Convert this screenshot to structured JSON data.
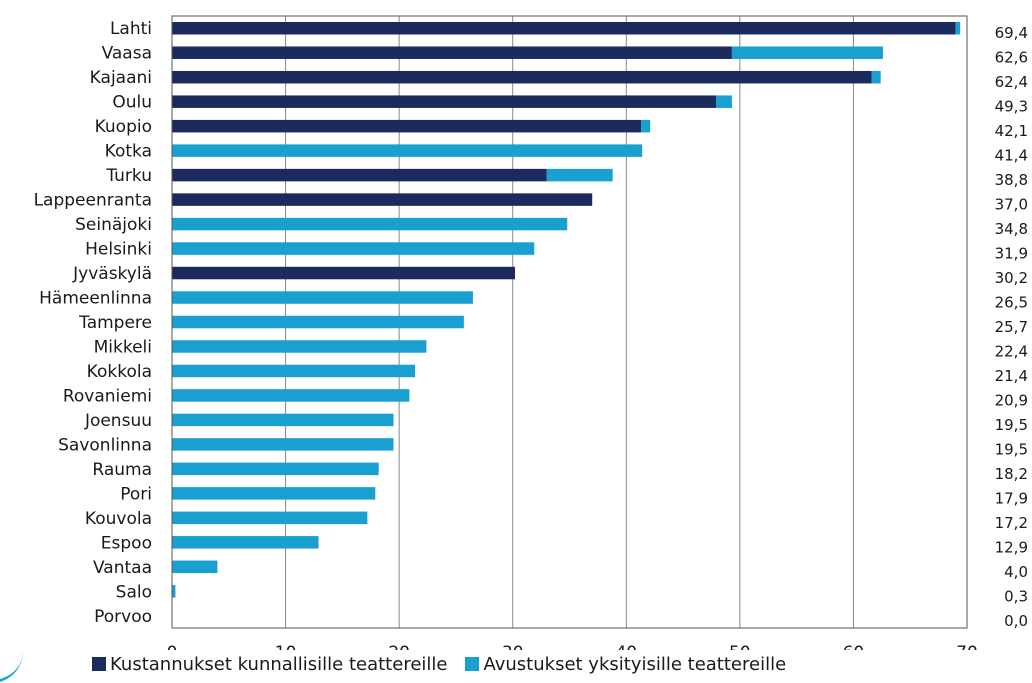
{
  "chart_data": {
    "type": "bar",
    "orientation": "horizontal",
    "stacked": true,
    "categories": [
      "Lahti",
      "Vaasa",
      "Kajaani",
      "Oulu",
      "Kuopio",
      "Kotka",
      "Turku",
      "Lappeenranta",
      "Seinäjoki",
      "Helsinki",
      "Jyväskylä",
      "Hämeenlinna",
      "Tampere",
      "Mikkeli",
      "Kokkola",
      "Rovaniemi",
      "Joensuu",
      "Savonlinna",
      "Rauma",
      "Pori",
      "Kouvola",
      "Espoo",
      "Vantaa",
      "Salo",
      "Porvoo"
    ],
    "series": [
      {
        "name": "Kustannukset kunnallisille teattereille",
        "color": "#1c2b5e",
        "values": [
          69.0,
          49.3,
          61.6,
          47.9,
          41.3,
          0,
          33.0,
          37.0,
          0,
          0,
          30.2,
          0,
          0,
          0,
          0,
          0,
          0,
          0,
          0,
          0,
          0,
          0,
          0,
          0,
          0
        ]
      },
      {
        "name": "Avustukset yksityisille teattereille",
        "color": "#1aa0d0",
        "values": [
          0.4,
          13.3,
          0.8,
          1.4,
          0.8,
          41.4,
          5.8,
          0,
          34.8,
          31.9,
          0,
          26.5,
          25.7,
          22.4,
          21.4,
          20.9,
          19.5,
          19.5,
          18.2,
          17.9,
          17.2,
          12.9,
          4.0,
          0.3,
          0
        ]
      }
    ],
    "totals": [
      "69,4",
      "62,6",
      "62,4",
      "49,3",
      "42,1",
      "41,4",
      "38,8",
      "37,0",
      "34,8",
      "31,9",
      "30,2",
      "26,5",
      "25,7",
      "22,4",
      "21,4",
      "20,9",
      "19,5",
      "19,5",
      "18,2",
      "17,9",
      "17,2",
      "12,9",
      "4,0",
      "0,3",
      "0,0"
    ],
    "xlim": [
      0,
      70
    ],
    "xticks": [
      0,
      10,
      20,
      30,
      40,
      50,
      60,
      70
    ],
    "grid": true,
    "legend_position": "bottom",
    "title": "",
    "xlabel": "",
    "ylabel": ""
  },
  "legend": {
    "item1": "Kustannukset kunnallisille teattereille",
    "item2": "Avustukset yksityisille teattereille"
  },
  "colors": {
    "dark": "#1c2b5e",
    "light": "#1aa0d0",
    "grid": "#888888"
  }
}
